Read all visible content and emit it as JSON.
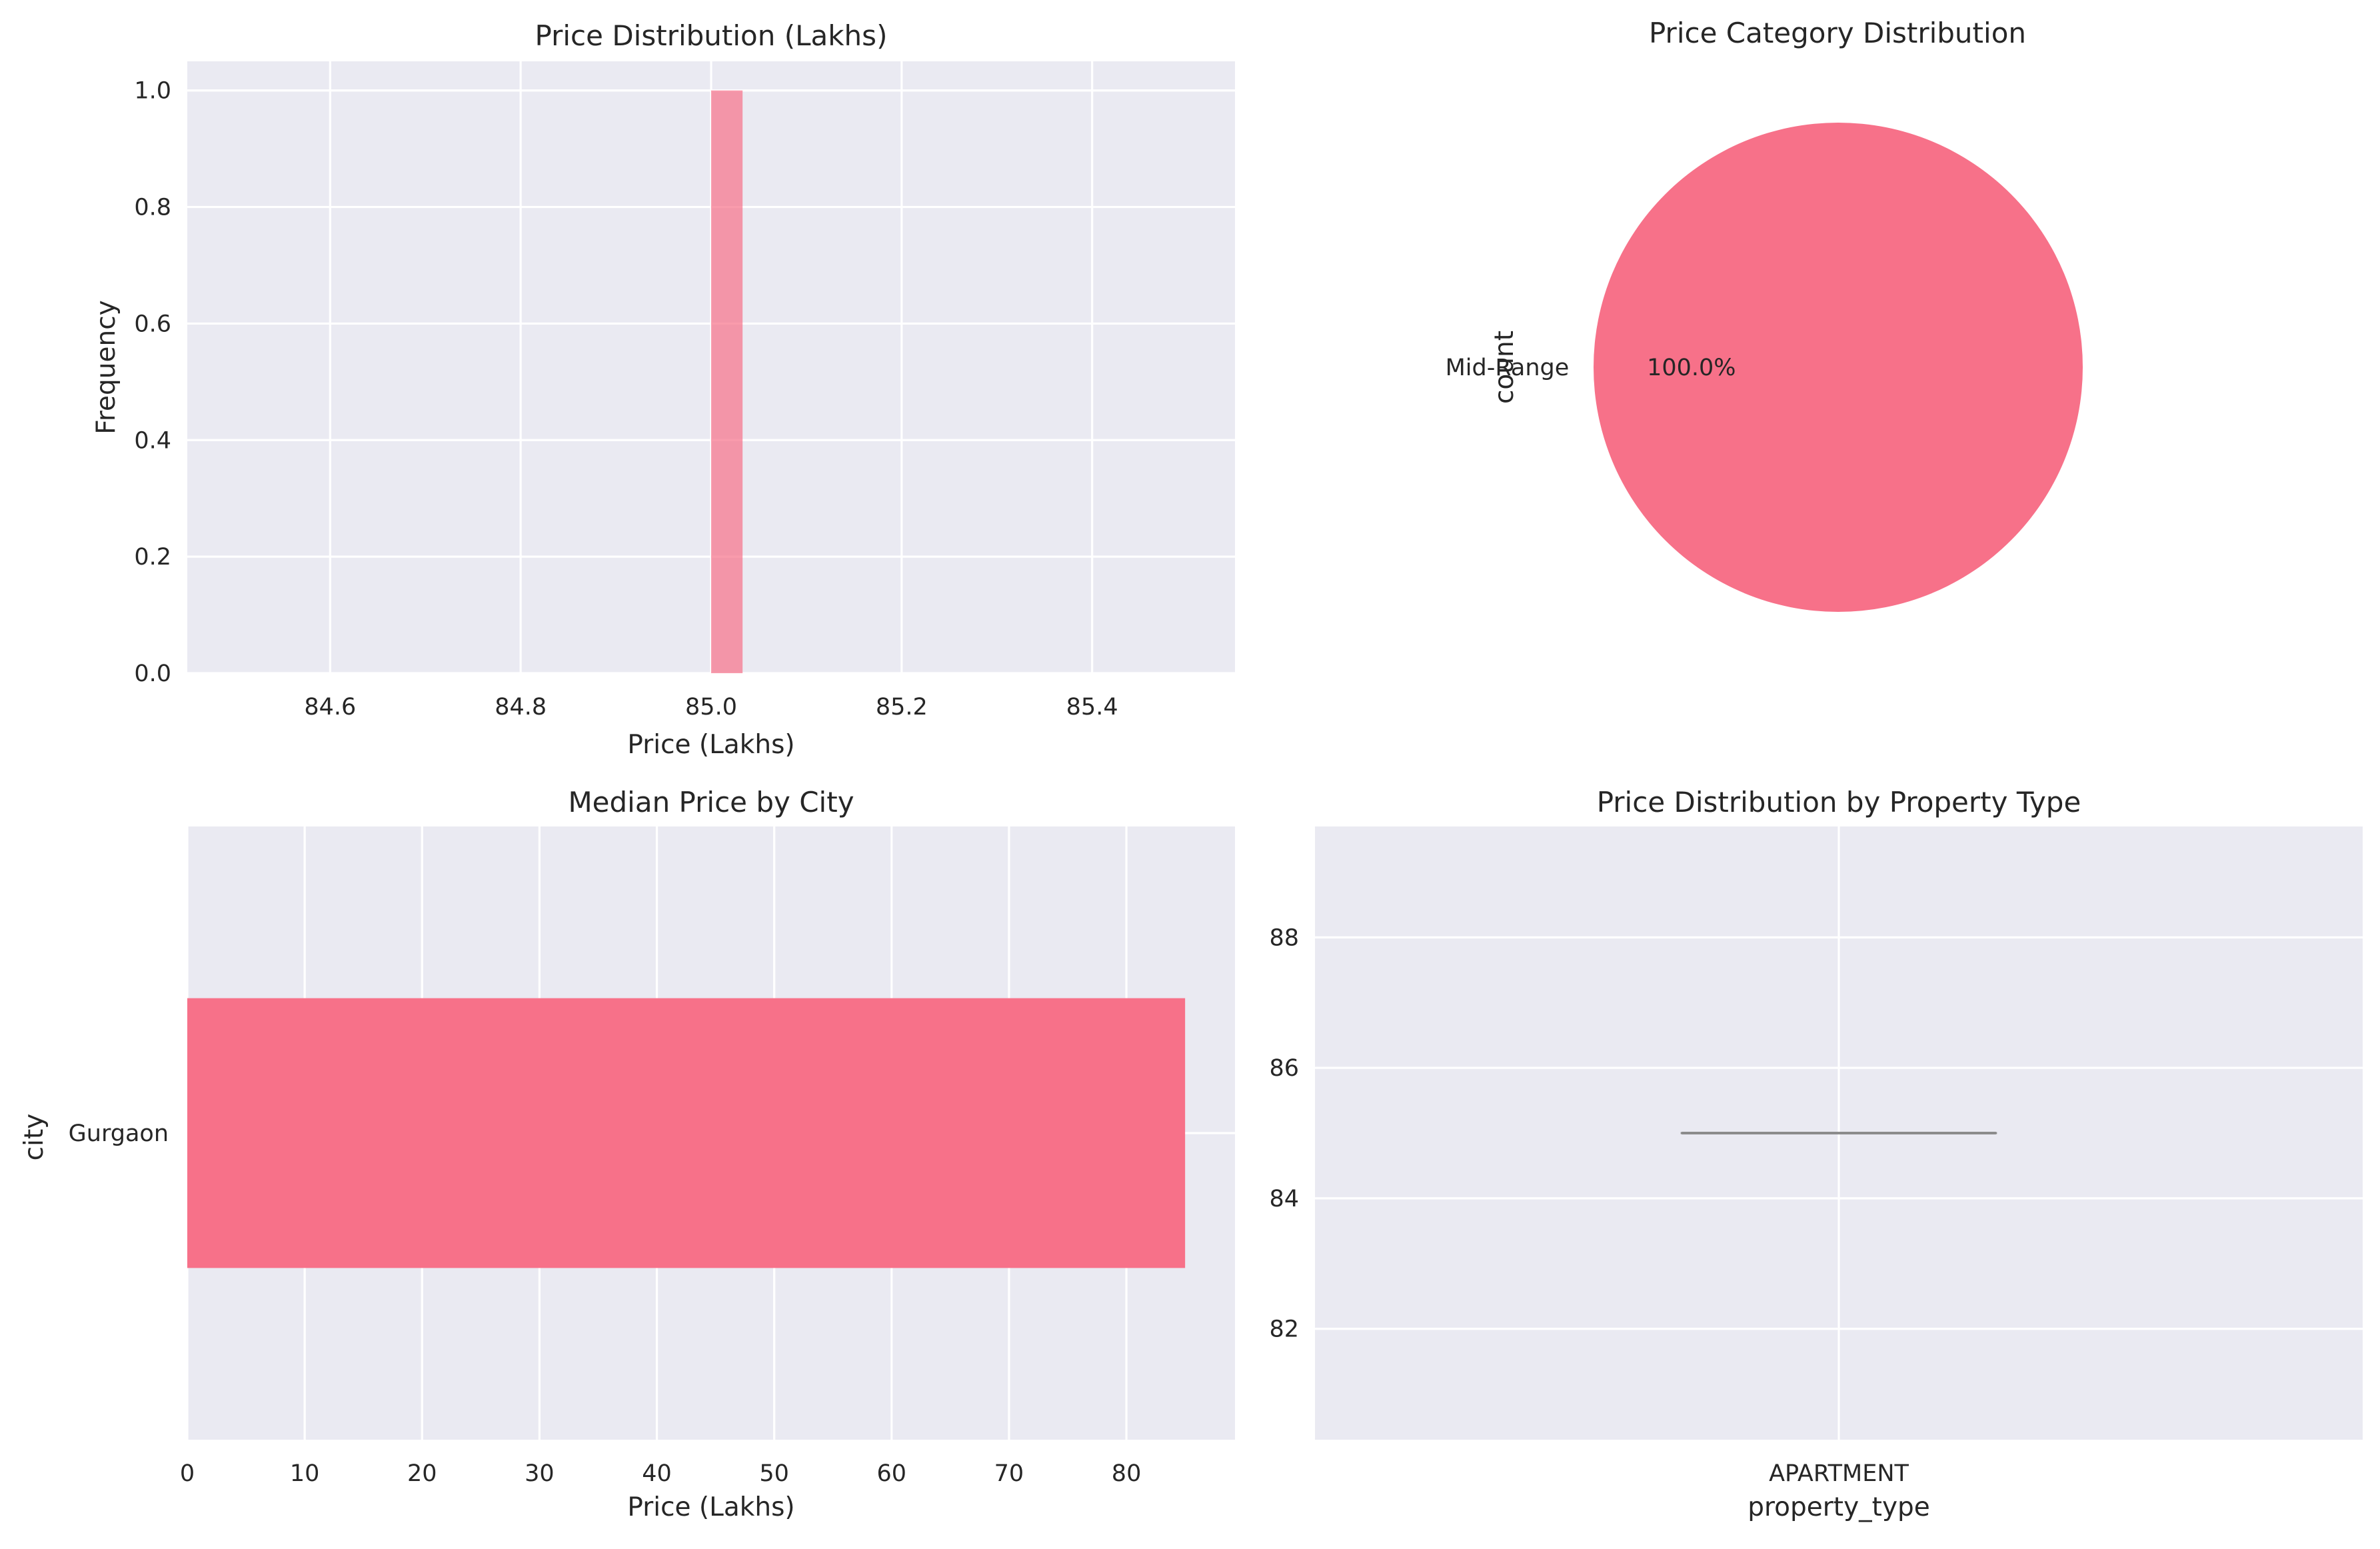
{
  "colors": {
    "background": "#eaeaf2",
    "grid": "#ffffff",
    "primary": "#f77189",
    "text": "#262626",
    "median_line": "#8c8c8c"
  },
  "chart_data": [
    {
      "type": "bar",
      "subtype": "histogram",
      "title": "Price Distribution (Lakhs)",
      "xlabel": "Price (Lakhs)",
      "ylabel": "Frequency",
      "xlim": [
        84.45,
        85.55
      ],
      "ylim": [
        0,
        1.05
      ],
      "xticks": [
        84.6,
        84.8,
        85.0,
        85.2,
        85.4
      ],
      "yticks": [
        0.0,
        0.2,
        0.4,
        0.6,
        0.8,
        1.0
      ],
      "bins": [
        {
          "x0": 85.0,
          "x1": 85.033,
          "count": 1
        }
      ],
      "alpha": 0.7,
      "grid": true
    },
    {
      "type": "pie",
      "title": "Price Category Distribution",
      "ylabel": "count",
      "labels": [
        "Mid-Range"
      ],
      "values": [
        1
      ],
      "percent_labels": [
        "100.0%"
      ]
    },
    {
      "type": "bar",
      "orientation": "horizontal",
      "title": "Median Price by City",
      "xlabel": "Price (Lakhs)",
      "ylabel": "city",
      "categories": [
        "Gurgaon"
      ],
      "values": [
        85
      ],
      "xlim": [
        0,
        89.25
      ],
      "xticks": [
        0,
        10,
        20,
        30,
        40,
        50,
        60,
        70,
        80
      ],
      "grid": true
    },
    {
      "type": "box",
      "title": "Price Distribution by Property Type",
      "xlabel": "property_type",
      "ylabel": "",
      "categories": [
        "APARTMENT"
      ],
      "stats": [
        {
          "min": 85,
          "q1": 85,
          "median": 85,
          "q3": 85,
          "max": 85
        }
      ],
      "ylim": [
        80.3,
        89.7
      ],
      "yticks": [
        82,
        84,
        86,
        88
      ],
      "grid": true
    }
  ]
}
